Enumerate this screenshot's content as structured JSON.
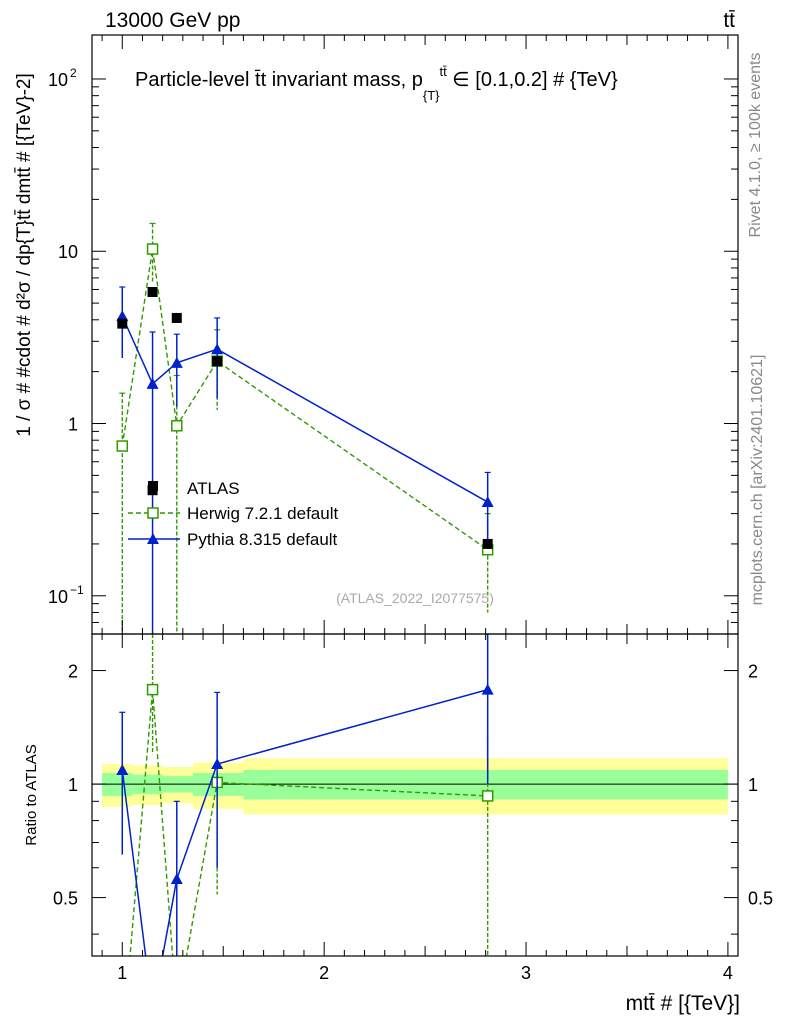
{
  "header": {
    "energy_label": "13000 GeV pp",
    "process_label": "tt̄"
  },
  "side_labels": {
    "rivet": "Rivet 4.1.0, ≥ 100k events",
    "mcplots": "mcplots.cern.ch [arXiv:2401.10621]"
  },
  "chart_data": {
    "type": "scatter",
    "title": "Particle-level t̄t invariant mass, p",
    "title_sub": "{T}",
    "title_sup": "tt̄",
    "title_rest": " ∈ [0.1,0.2] # {TeV}",
    "analysis_id": "(ATLAS_2022_I2077575)",
    "ylabel": "1 / σ # #cdot # d²σ / dp{T}tt̄ dmtt̄ # [{TeV}-2]",
    "xlabel": "mtt̄ # [{TeV}]",
    "ratio_ylabel": "Ratio to ATLAS",
    "xlim": [
      0.85,
      4.05
    ],
    "main_ylim": [
      0.06,
      180
    ],
    "ratio_ylim": [
      0.35,
      2.5
    ],
    "main_yticks": [
      {
        "v": 0.1,
        "label": "10",
        "sup": "−1"
      },
      {
        "v": 1,
        "label": "1",
        "sup": ""
      },
      {
        "v": 10,
        "label": "10",
        "sup": ""
      },
      {
        "v": 100,
        "label": "10",
        "sup": "2"
      }
    ],
    "ratio_yticks": [
      {
        "v": 0.5,
        "label": "0.5"
      },
      {
        "v": 1,
        "label": "1"
      },
      {
        "v": 2,
        "label": "2"
      }
    ],
    "xticks": [
      {
        "v": 1,
        "label": "1"
      },
      {
        "v": 2,
        "label": "2"
      },
      {
        "v": 3,
        "label": "3"
      },
      {
        "v": 4,
        "label": "4"
      }
    ],
    "bins": [
      {
        "lo": 0.9,
        "hi": 1.05,
        "stat": 0.07,
        "tot": 0.13
      },
      {
        "lo": 1.05,
        "hi": 1.2,
        "stat": 0.06,
        "tot": 0.12
      },
      {
        "lo": 1.2,
        "hi": 1.35,
        "stat": 0.05,
        "tot": 0.11
      },
      {
        "lo": 1.35,
        "hi": 1.6,
        "stat": 0.07,
        "tot": 0.14
      },
      {
        "lo": 1.6,
        "hi": 4.0,
        "stat": 0.09,
        "tot": 0.17
      }
    ],
    "legend": [
      {
        "name": "ATLAS",
        "key": "atlas"
      },
      {
        "name": "Herwig 7.2.1 default",
        "key": "herwig"
      },
      {
        "name": "Pythia 8.315 default",
        "key": "pythia"
      }
    ],
    "series": {
      "atlas": {
        "name": "ATLAS",
        "color": "#000000",
        "x": [
          1.0,
          1.15,
          1.27,
          1.47,
          2.81
        ],
        "y": [
          3.8,
          0.41,
          4.1,
          2.3,
          0.2
        ],
        "y2": [
          null,
          5.8,
          null,
          null,
          null
        ]
      },
      "herwig": {
        "name": "Herwig 7.2.1 default",
        "color": "#339900",
        "x": [
          1.0,
          1.15,
          1.27,
          1.47,
          2.81
        ],
        "y": [
          0.74,
          10.3,
          0.97,
          2.3,
          0.185
        ],
        "ylo": [
          0.05,
          6.5,
          0.05,
          1.2,
          0.08
        ],
        "yhi": [
          1.5,
          14.5,
          1.9,
          3.5,
          0.3
        ],
        "ratio": [
          0.2,
          1.78,
          0.25,
          1.01,
          0.93
        ],
        "ratio_lo": [
          0.2,
          1.2,
          0.2,
          0.51,
          0.3
        ],
        "ratio_hi": [
          0.35,
          2.5,
          0.3,
          1.25,
          1.35
        ]
      },
      "pythia": {
        "name": "Pythia 8.315 default",
        "color": "#0022cc",
        "x": [
          1.0,
          1.15,
          1.27,
          1.47,
          2.81
        ],
        "y": [
          4.2,
          1.7,
          2.25,
          2.7,
          0.35
        ],
        "ylo": [
          2.4,
          0.02,
          1.25,
          1.4,
          0.2
        ],
        "yhi": [
          6.2,
          3.4,
          3.3,
          4.1,
          0.52
        ],
        "ratio": [
          1.09,
          0.25,
          0.56,
          1.13,
          1.78
        ],
        "ratio_lo": [
          0.65,
          0.2,
          0.2,
          0.6,
          1.0
        ],
        "ratio_hi": [
          1.55,
          0.3,
          0.9,
          1.75,
          2.5
        ]
      }
    }
  }
}
